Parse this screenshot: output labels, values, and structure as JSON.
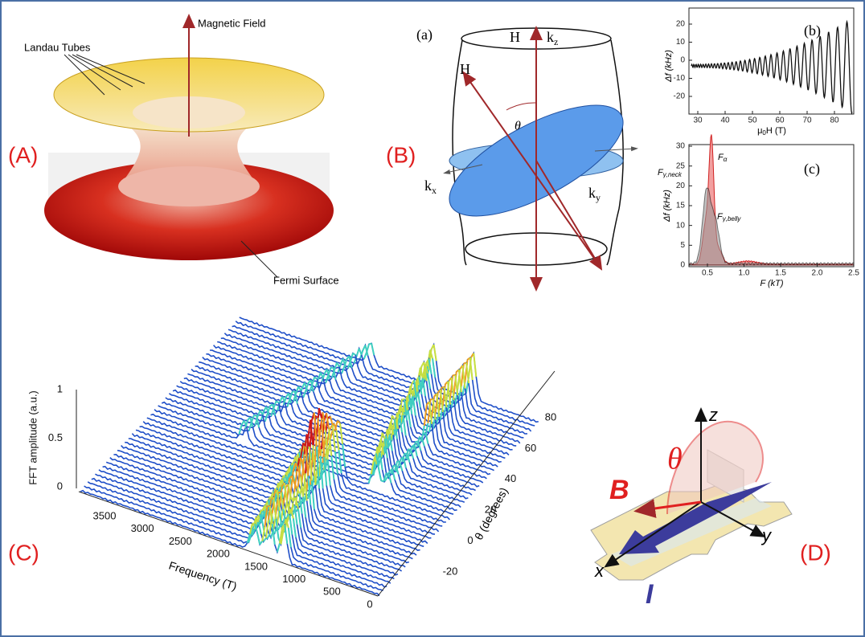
{
  "panel_a": {
    "label": "(A)",
    "magnetic_field": "Magnetic Field",
    "landau_tubes": "Landau Tubes",
    "fermi_surface": "Fermi Surface"
  },
  "panel_b": {
    "label": "(B)",
    "sublabel": "(a)",
    "h_vertical": "H",
    "h_tilted": "H",
    "theta": "θ",
    "kz": {
      "base": "k",
      "sub": "z"
    },
    "kx": {
      "base": "k",
      "sub": "x"
    },
    "ky": {
      "base": "k",
      "sub": "y"
    }
  },
  "inset_b": {
    "label": "(b)",
    "y_label": "Δf (kHz)",
    "x_label": {
      "base": "μ",
      "sub": "0",
      "rest": "H (T)"
    },
    "yticks": [
      "20",
      "10",
      "0",
      "-10",
      "-20"
    ],
    "xticks": [
      "30",
      "40",
      "50",
      "60",
      "70",
      "80"
    ]
  },
  "inset_c": {
    "label": "(c)",
    "y_label": "Δf (kHz)",
    "x_label": "F (kT)",
    "yticks": [
      "30",
      "25",
      "20",
      "15",
      "10",
      "5",
      "0"
    ],
    "xticks": [
      "0.5",
      "1.0",
      "1.5",
      "2.0",
      "2.5"
    ],
    "f_alpha": {
      "base": "F",
      "sub": "α"
    },
    "f_neck": {
      "base": "F",
      "sub": "γ,neck"
    },
    "f_belly": {
      "base": "F",
      "sub": "γ,belly"
    }
  },
  "panel_c": {
    "label": "(C)",
    "y_label": "FFT amplitude (a.u.)",
    "yticks": [
      "1",
      "0.5",
      "0"
    ],
    "x_label": "Frequency (T)",
    "xticks": [
      "3500",
      "3000",
      "2500",
      "2000",
      "1500",
      "1000",
      "500",
      "0"
    ],
    "z_label": "θ (degrees)",
    "zticks": [
      "80",
      "60",
      "40",
      "20",
      "0",
      "-20"
    ]
  },
  "panel_d": {
    "label": "(D)",
    "z": "z",
    "y": "y",
    "x": "x",
    "b": "B",
    "i": "I",
    "theta": "θ"
  }
}
